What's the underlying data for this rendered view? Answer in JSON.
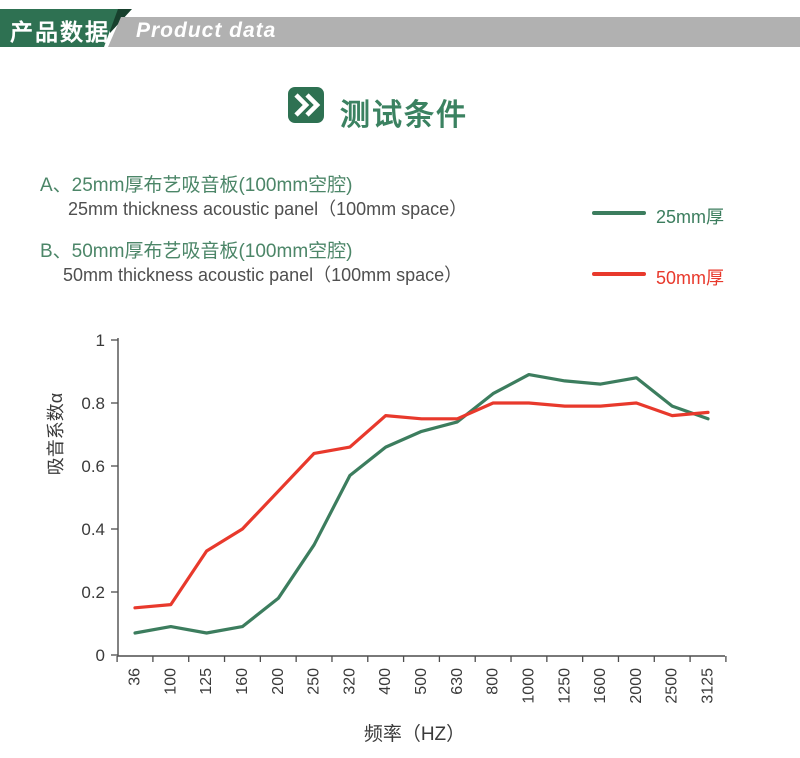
{
  "header": {
    "title_cn": "产品数据",
    "title_en": "Product data",
    "green": "#2e7152",
    "green_dark": "#17402d",
    "gray": "#b1b1b1"
  },
  "section": {
    "title": "测试条件"
  },
  "items": [
    {
      "label_cn": "A、25mm厚布艺吸音板(100mm空腔)",
      "label_en": "25mm thickness acoustic panel（100mm space）"
    },
    {
      "label_cn": "B、50mm厚布艺吸音板(100mm空腔)",
      "label_en": "50mm thickness acoustic panel（100mm space）"
    }
  ],
  "legend": {
    "items": [
      {
        "label": "25mm厚",
        "color": "#3c7d5e"
      },
      {
        "label": "50mm厚",
        "color": "#e8392c"
      }
    ]
  },
  "chart_data": {
    "type": "line",
    "title": "",
    "xlabel": "频率（HZ）",
    "ylabel": "吸音系数α",
    "categories": [
      "36",
      "100",
      "125",
      "160",
      "200",
      "250",
      "320",
      "400",
      "500",
      "630",
      "800",
      "1000",
      "1250",
      "1600",
      "2000",
      "2500",
      "3125"
    ],
    "series": [
      {
        "name": "25mm厚",
        "color": "#3c7d5e",
        "values": [
          0.07,
          0.09,
          0.07,
          0.09,
          0.18,
          0.35,
          0.57,
          0.66,
          0.71,
          0.74,
          0.83,
          0.89,
          0.87,
          0.86,
          0.88,
          0.79,
          0.75
        ]
      },
      {
        "name": "50mm厚",
        "color": "#e8392c",
        "values": [
          0.15,
          0.16,
          0.33,
          0.4,
          0.52,
          0.64,
          0.66,
          0.76,
          0.75,
          0.75,
          0.8,
          0.8,
          0.79,
          0.79,
          0.8,
          0.76,
          0.77
        ]
      }
    ],
    "ylim": [
      0,
      1
    ],
    "yticks": [
      0,
      0.2,
      0.4,
      0.6,
      0.8,
      1
    ],
    "ytick_labels": [
      "0",
      "0.2",
      "0.4",
      "0.6",
      "0.8",
      "1"
    ],
    "grid": false,
    "legend_position": "outside upper right",
    "axis_color": "#4d4d4d",
    "tick_label_color": "#3a3a3a"
  }
}
